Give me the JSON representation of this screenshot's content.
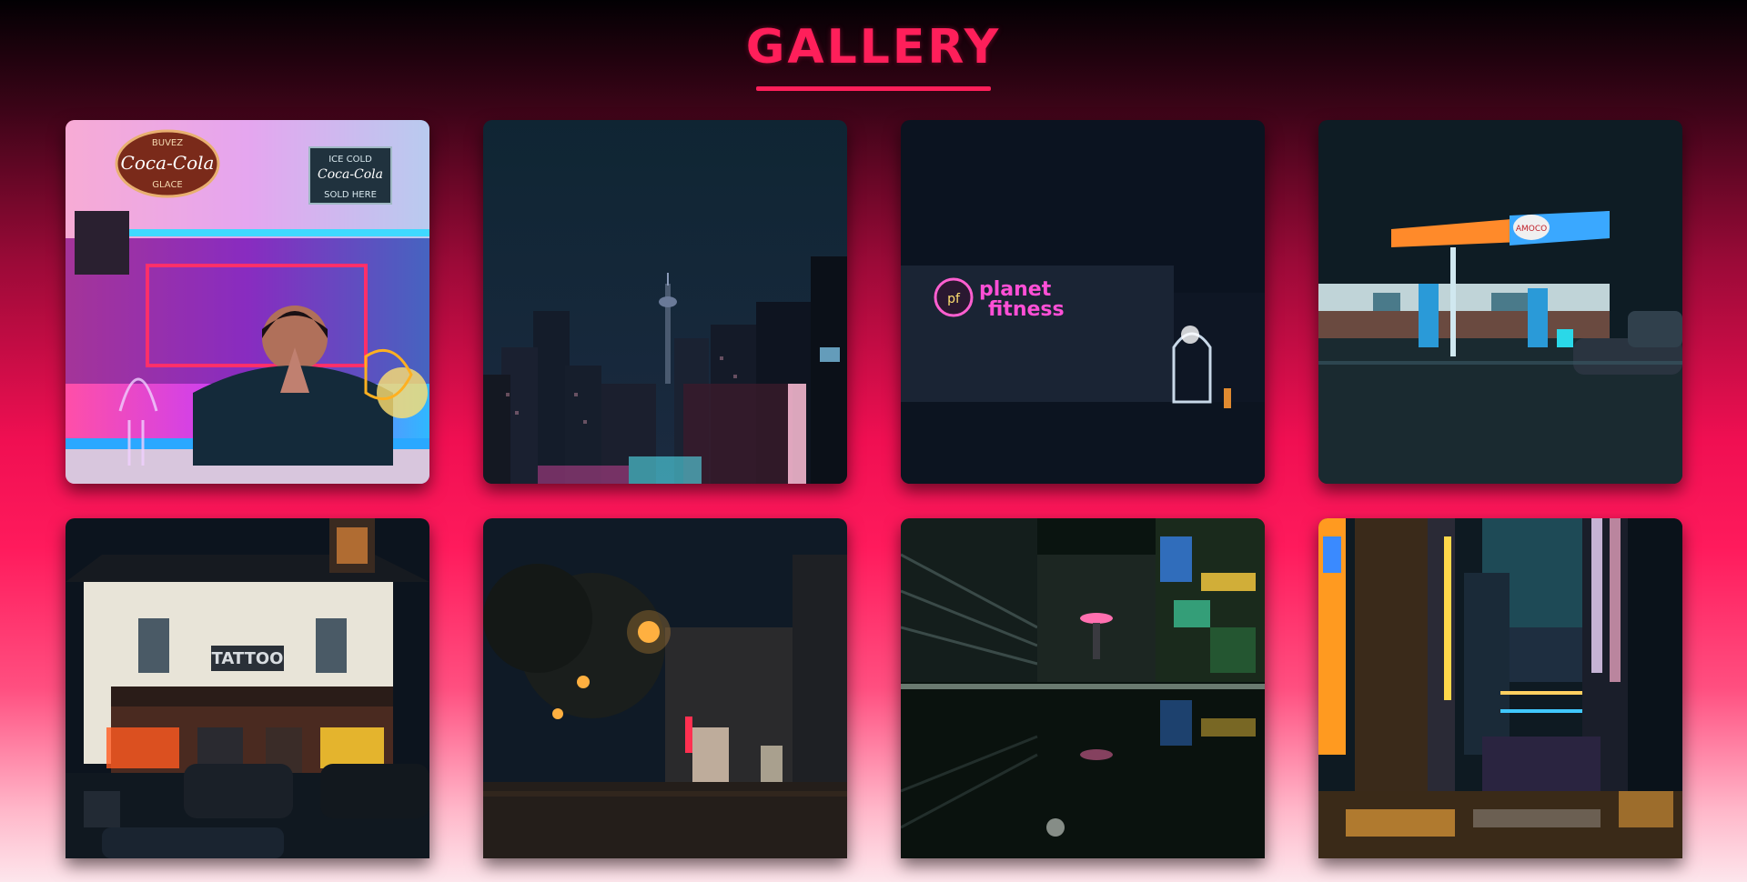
{
  "header": {
    "title": "GALLERY"
  },
  "gallery": {
    "items": [
      {
        "icon": "photo-neon-bar-portrait",
        "sign_top": "BUVEZ",
        "sign_brand": "Coca-Cola",
        "sign_bottom": "GLACE",
        "sign_right_1": "ICE COLD",
        "sign_right_2": "Coca-Cola",
        "sign_right_3": "SOLD HERE"
      },
      {
        "icon": "photo-city-skyline-tower"
      },
      {
        "icon": "photo-planet-fitness-building",
        "sign_text_1": "planet",
        "sign_text_2": "fitness",
        "sign_logo": "pf"
      },
      {
        "icon": "photo-gas-station-night",
        "sign_text": "AMOCO"
      },
      {
        "icon": "photo-tattoo-shop",
        "sign_text": "TATTOO"
      },
      {
        "icon": "photo-street-lamps-night"
      },
      {
        "icon": "photo-rainy-alley-reflection"
      },
      {
        "icon": "photo-neon-city-street"
      }
    ]
  },
  "colors": {
    "accent": "#ff1f5a",
    "background_top": "#020003",
    "background_mid": "#f00f52",
    "background_bottom": "#fde6ec"
  }
}
